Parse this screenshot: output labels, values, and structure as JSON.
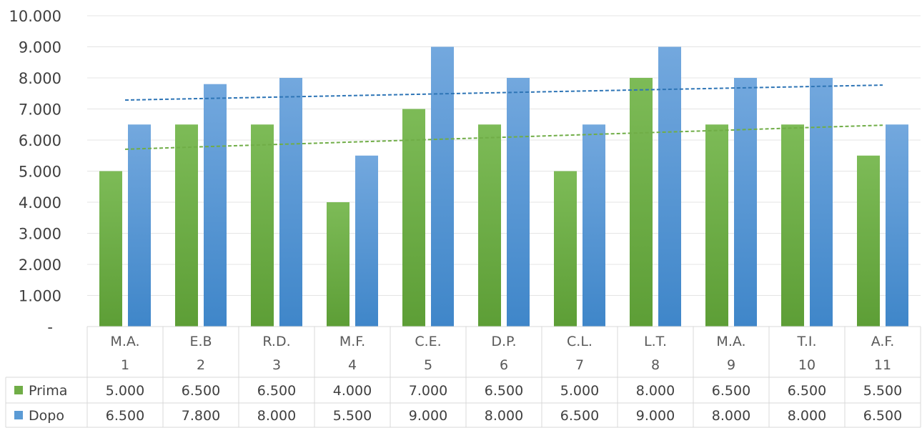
{
  "chart_data": {
    "type": "bar",
    "title": "",
    "xlabel": "",
    "ylabel": "",
    "ylim": [
      0,
      10000
    ],
    "yticks": [
      "-",
      "1.000",
      "2.000",
      "3.000",
      "4.000",
      "5.000",
      "6.000",
      "7.000",
      "8.000",
      "9.000",
      "10.000"
    ],
    "grid": true,
    "legend": "data-table",
    "categories": [
      {
        "initials": "M.A.",
        "number": "1"
      },
      {
        "initials": "E.B",
        "number": "2"
      },
      {
        "initials": "R.D.",
        "number": "3"
      },
      {
        "initials": "M.F.",
        "number": "4"
      },
      {
        "initials": "C.E.",
        "number": "5"
      },
      {
        "initials": "D.P.",
        "number": "6"
      },
      {
        "initials": "C.L.",
        "number": "7"
      },
      {
        "initials": "L.T.",
        "number": "8"
      },
      {
        "initials": "M.A.",
        "number": "9"
      },
      {
        "initials": "T.I.",
        "number": "10"
      },
      {
        "initials": "A.F.",
        "number": "11"
      }
    ],
    "series": [
      {
        "name": "Prima",
        "color": "#70ad47",
        "values": [
          5000,
          6500,
          6500,
          4000,
          7000,
          6500,
          5000,
          8000,
          6500,
          6500,
          5500
        ],
        "labels": [
          "5.000",
          "6.500",
          "6.500",
          "4.000",
          "7.000",
          "6.500",
          "5.000",
          "8.000",
          "6.500",
          "6.500",
          "5.500"
        ],
        "trendline": {
          "type": "linear",
          "style": "dashed",
          "color": "#70ad47"
        }
      },
      {
        "name": "Dopo",
        "color": "#5b9bd5",
        "values": [
          6500,
          7800,
          8000,
          5500,
          9000,
          8000,
          6500,
          9000,
          8000,
          8000,
          6500
        ],
        "labels": [
          "6.500",
          "7.800",
          "8.000",
          "5.500",
          "9.000",
          "8.000",
          "6.500",
          "9.000",
          "8.000",
          "8.000",
          "6.500"
        ],
        "trendline": {
          "type": "linear",
          "style": "dashed",
          "color": "#2e75b6"
        }
      }
    ]
  }
}
